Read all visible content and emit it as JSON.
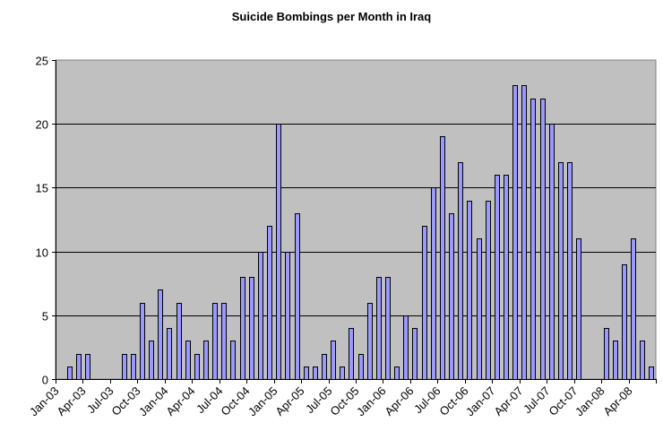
{
  "chart_data": {
    "type": "bar",
    "title": "Suicide Bombings per Month in Iraq",
    "xlabel": "",
    "ylabel": "",
    "ylim": [
      0,
      25
    ],
    "yticks": [
      0,
      5,
      10,
      15,
      20,
      25
    ],
    "grid": true,
    "legend": "none",
    "colors": {
      "bar": "#9999ff",
      "plot_bg": "#c0c0c0",
      "grid": "#000000"
    },
    "categories": [
      "Jan-03",
      "Feb-03",
      "Mar-03",
      "Apr-03",
      "May-03",
      "Jun-03",
      "Jul-03",
      "Aug-03",
      "Sep-03",
      "Oct-03",
      "Nov-03",
      "Dec-03",
      "Jan-04",
      "Feb-04",
      "Mar-04",
      "Apr-04",
      "May-04",
      "Jun-04",
      "Jul-04",
      "Aug-04",
      "Sep-04",
      "Oct-04",
      "Nov-04",
      "Dec-04",
      "Jan-05",
      "Feb-05",
      "Mar-05",
      "Apr-05",
      "May-05",
      "Jun-05",
      "Jul-05",
      "Aug-05",
      "Sep-05",
      "Oct-05",
      "Nov-05",
      "Dec-05",
      "Jan-06",
      "Feb-06",
      "Mar-06",
      "Apr-06",
      "May-06",
      "Jun-06",
      "Jul-06",
      "Aug-06",
      "Sep-06",
      "Oct-06",
      "Nov-06",
      "Dec-06",
      "Jan-07",
      "Feb-07",
      "Mar-07",
      "Apr-07",
      "May-07",
      "Jun-07",
      "Jul-07",
      "Aug-07",
      "Sep-07",
      "Oct-07",
      "Nov-07",
      "Dec-07",
      "Jan-08",
      "Feb-08",
      "Mar-08",
      "Apr-08",
      "May-08",
      "Jun-08"
    ],
    "values": [
      0,
      1,
      2,
      2,
      0,
      0,
      0,
      2,
      2,
      6,
      3,
      7,
      4,
      6,
      3,
      2,
      3,
      6,
      6,
      3,
      8,
      8,
      10,
      12,
      20,
      10,
      13,
      1,
      1,
      2,
      3,
      1,
      4,
      2,
      6,
      8,
      8,
      1,
      5,
      4,
      12,
      15,
      19,
      13,
      17,
      14,
      11,
      14,
      16,
      16,
      23,
      23,
      22,
      22,
      20,
      17,
      17,
      11,
      0,
      0,
      4,
      3,
      9,
      11,
      3,
      1
    ],
    "xtick_labels": [
      "Jan-03",
      "Apr-03",
      "Jul-03",
      "Oct-03",
      "Jan-04",
      "Apr-04",
      "Jul-04",
      "Oct-04",
      "Jan-05",
      "Apr-05",
      "Jul-05",
      "Oct-05",
      "Jan-06",
      "Apr-06",
      "Jul-06",
      "Oct-06",
      "Jan-07",
      "Apr-07",
      "Jul-07",
      "Oct-07",
      "Jan-08",
      "Apr-08"
    ]
  }
}
